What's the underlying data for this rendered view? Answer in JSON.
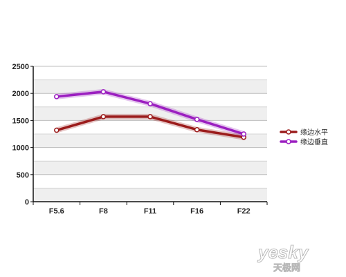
{
  "chart_data": {
    "type": "line",
    "title": "",
    "xlabel": "",
    "ylabel": "",
    "categories": [
      "F5.6",
      "F8",
      "F11",
      "F16",
      "F22"
    ],
    "ylim": [
      0,
      2500
    ],
    "yticks": [
      "0",
      "500",
      "1000",
      "1500",
      "2000",
      "2500"
    ],
    "grid": true,
    "legend_position": "right",
    "series": [
      {
        "name": "缘边水平",
        "color": "#9b1b1b",
        "values": [
          1320,
          1570,
          1570,
          1330,
          1190
        ]
      },
      {
        "name": "缘边垂直",
        "color": "#9b1fc0",
        "values": [
          1940,
          2030,
          1810,
          1520,
          1250
        ]
      }
    ]
  },
  "watermark": {
    "main": "yesky",
    "sub": "天极网"
  }
}
